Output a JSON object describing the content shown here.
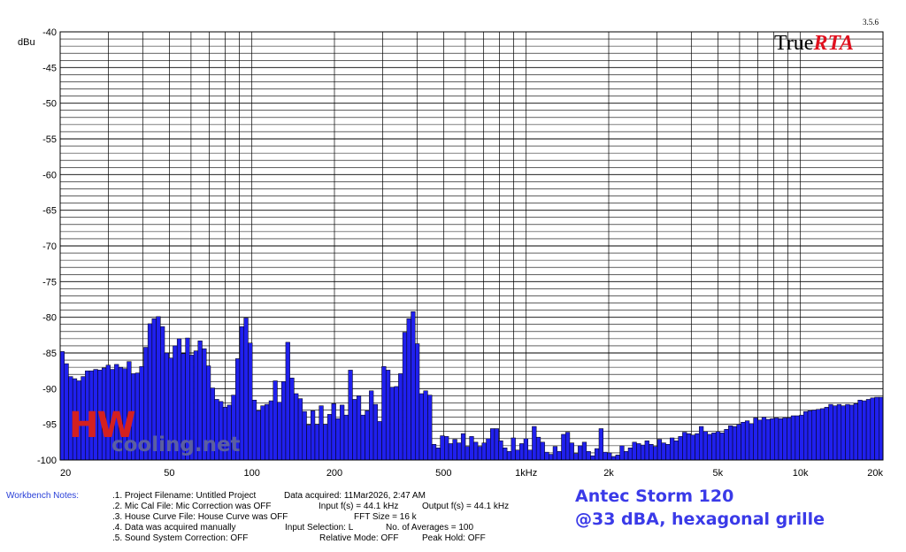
{
  "chart_data": {
    "type": "bar",
    "ylabel": "dBu",
    "ylim": [
      -100,
      -40
    ],
    "xscale": "log",
    "xlim": [
      20,
      20000
    ],
    "y_ticks": [
      -40,
      -45,
      -50,
      -55,
      -60,
      -65,
      -70,
      -75,
      -80,
      -85,
      -90,
      -95,
      -100
    ],
    "x_ticks": [
      {
        "value": 20,
        "label": "20"
      },
      {
        "value": 50,
        "label": "50"
      },
      {
        "value": 100,
        "label": "100"
      },
      {
        "value": 200,
        "label": "200"
      },
      {
        "value": 500,
        "label": "500"
      },
      {
        "value": 1000,
        "label": "1kHz"
      },
      {
        "value": 2000,
        "label": "2k"
      },
      {
        "value": 5000,
        "label": "5k"
      },
      {
        "value": 10000,
        "label": "10k"
      },
      {
        "value": 20000,
        "label": "20k"
      }
    ],
    "grid": true,
    "bar_color": "#2020ee",
    "values": [
      -84.8,
      -86.5,
      -88.3,
      -88.6,
      -88.9,
      -88.3,
      -87.5,
      -87.5,
      -87.3,
      -87.4,
      -87.1,
      -86.7,
      -87.3,
      -86.6,
      -87.0,
      -87.2,
      -86.2,
      -87.9,
      -87.8,
      -86.9,
      -84.2,
      -80.9,
      -80.2,
      -79.9,
      -81.3,
      -85.0,
      -85.7,
      -84.0,
      -83.0,
      -85.1,
      -82.9,
      -85.3,
      -84.7,
      -83.3,
      -84.4,
      -86.8,
      -89.9,
      -91.5,
      -91.8,
      -92.6,
      -92.3,
      -90.9,
      -85.8,
      -81.3,
      -80.1,
      -83.6,
      -91.6,
      -93.1,
      -92.4,
      -92.2,
      -91.7,
      -88.9,
      -91.9,
      -89.0,
      -83.5,
      -88.5,
      -90.7,
      -91.4,
      -93.2,
      -95.1,
      -93.1,
      -95.0,
      -92.4,
      -95.0,
      -93.6,
      -92.1,
      -94.2,
      -92.3,
      -93.7,
      -87.4,
      -91.5,
      -91.0,
      -93.7,
      -93.1,
      -90.3,
      -92.2,
      -94.6,
      -86.9,
      -87.4,
      -89.8,
      -89.7,
      -87.9,
      -82.1,
      -80.2,
      -79.2,
      -83.7,
      -90.7,
      -90.3,
      -90.9,
      -97.8,
      -98.3,
      -96.6,
      -96.7,
      -97.7,
      -97.1,
      -97.6,
      -96.3,
      -98.1,
      -96.7,
      -97.5,
      -98.1,
      -97.6,
      -97.0,
      -95.6,
      -95.6,
      -97.3,
      -98.3,
      -98.8,
      -96.9,
      -98.6,
      -97.7,
      -97.0,
      -98.6,
      -95.3,
      -96.8,
      -97.5,
      -98.9,
      -99.2,
      -98.1,
      -98.8,
      -96.4,
      -96.1,
      -97.6,
      -99.1,
      -98.0,
      -97.5,
      -98.8,
      -99.4,
      -98.4,
      -95.6,
      -98.9,
      -99.0,
      -99.5,
      -99.3,
      -98.0,
      -98.8,
      -98.3,
      -97.5,
      -97.7,
      -97.9,
      -97.3,
      -97.8,
      -98.1,
      -97.1,
      -97.6,
      -97.8,
      -96.9,
      -97.3,
      -96.7,
      -96.1,
      -96.3,
      -96.5,
      -96.3,
      -95.3,
      -96.0,
      -96.4,
      -96.2,
      -96.0,
      -96.2,
      -95.7,
      -95.2,
      -95.3,
      -95.0,
      -94.7,
      -94.5,
      -94.9,
      -94.1,
      -94.4,
      -94.0,
      -94.3,
      -94.2,
      -94.1,
      -94.2,
      -94.1,
      -94.1,
      -93.8,
      -93.8,
      -93.7,
      -93.2,
      -93.1,
      -93.0,
      -92.9,
      -92.8,
      -92.6,
      -92.2,
      -92.4,
      -92.2,
      -92.4,
      -92.2,
      -92.3,
      -92.1,
      -91.6,
      -91.7,
      -91.5,
      -91.3,
      -91.2,
      -91.2
    ],
    "x_start": 20,
    "x_end": 20000
  },
  "logo": {
    "true": "True",
    "rta": "RTA",
    "version": "3.5.6"
  },
  "watermark": {
    "hw": "HW",
    "site": "cooling.net"
  },
  "workbench": {
    "label": "Workbench Notes:",
    "lines": [
      ".1. Project Filename: Untitled Project",
      ".2. Mic Cal File: Mic Correction was OFF",
      ".3. House Curve File: House Curve was OFF",
      ".4. Data was acquired manually",
      ".5. Sound System Correction: OFF"
    ],
    "data_acquired": "Data acquired: 11Mar2026, 2:47 AM",
    "input_fs": "Input f(s) = 44.1 kHz",
    "output_fs": "Output f(s) = 44.1 kHz",
    "fft_size": "FFT Size = 16 k",
    "input_selection": "Input Selection: L",
    "num_averages": "No. of Averages = 100",
    "relative_mode": "Relative Mode:  OFF",
    "peak_hold": "Peak Hold: OFF"
  },
  "caption": {
    "line1": "Antec Storm 120",
    "line2": "@33 dBA, hexagonal grille"
  }
}
